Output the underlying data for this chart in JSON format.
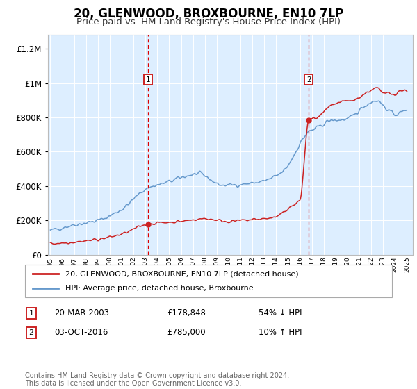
{
  "title": "20, GLENWOOD, BROXBOURNE, EN10 7LP",
  "subtitle": "Price paid vs. HM Land Registry's House Price Index (HPI)",
  "title_fontsize": 12,
  "subtitle_fontsize": 10,
  "ytick_values": [
    0,
    200000,
    400000,
    600000,
    800000,
    1000000,
    1200000
  ],
  "ylim": [
    0,
    1280000
  ],
  "xlim_start": 1994.8,
  "xlim_end": 2025.5,
  "background_color": "#ddeeff",
  "hpi_color": "#6699cc",
  "price_color": "#cc2222",
  "sale1_year": 2003.22,
  "sale1_price": 178848,
  "sale2_year": 2016.75,
  "sale2_price": 785000,
  "marker_y": 1020000,
  "legend_label_red": "20, GLENWOOD, BROXBOURNE, EN10 7LP (detached house)",
  "legend_label_blue": "HPI: Average price, detached house, Broxbourne",
  "footer_text": "Contains HM Land Registry data © Crown copyright and database right 2024.\nThis data is licensed under the Open Government Licence v3.0.",
  "annotation1_label": "1",
  "annotation1_date": "20-MAR-2003",
  "annotation1_price": "£178,848",
  "annotation1_rel": "54% ↓ HPI",
  "annotation2_label": "2",
  "annotation2_date": "03-OCT-2016",
  "annotation2_price": "£785,000",
  "annotation2_rel": "10% ↑ HPI"
}
